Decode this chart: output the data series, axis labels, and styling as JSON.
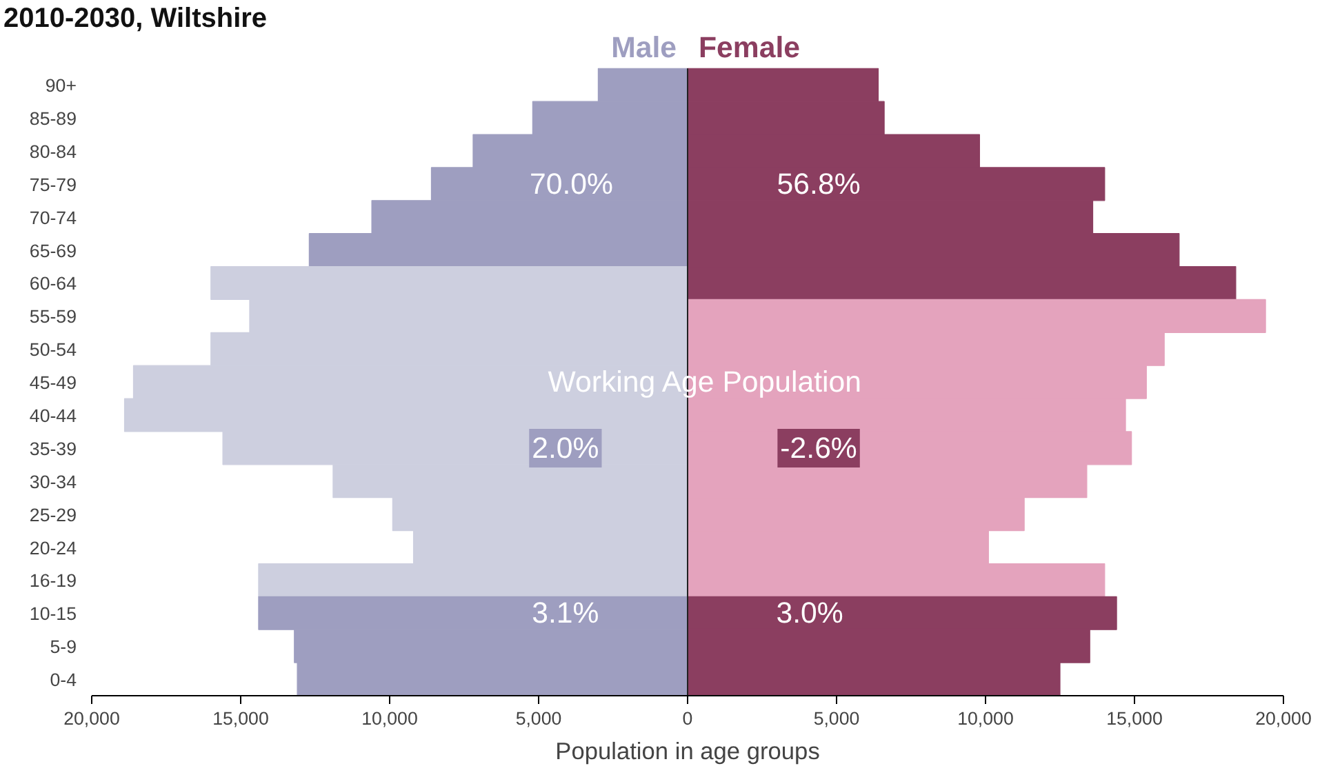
{
  "chart_data": {
    "type": "bar",
    "orientation": "horizontal",
    "title": "2010-2030, Wiltshire",
    "xlabel": "Population in age groups",
    "categories": [
      "90+",
      "85-89",
      "80-84",
      "75-79",
      "70-74",
      "65-69",
      "60-64",
      "55-59",
      "50-54",
      "45-49",
      "40-44",
      "35-39",
      "30-34",
      "25-29",
      "20-24",
      "16-19",
      "10-15",
      "5-9",
      "0-4"
    ],
    "series": [
      {
        "name": "Male",
        "color": "#9e9ec0",
        "values": [
          -3000,
          -5200,
          -7200,
          -8600,
          -10600,
          -12700,
          -16000,
          -14700,
          -16000,
          -18600,
          -18900,
          -15600,
          -11900,
          -9900,
          -9200,
          -14400,
          -14400,
          -13200,
          -13100
        ],
        "colors": [
          "#9e9ec0",
          "#9e9ec0",
          "#9e9ec0",
          "#9e9ec0",
          "#9e9ec0",
          "#9e9ec0",
          "#cdcfdf",
          "#cdcfdf",
          "#cdcfdf",
          "#cdcfdf",
          "#cdcfdf",
          "#cdcfdf",
          "#cdcfdf",
          "#cdcfdf",
          "#cdcfdf",
          "#cdcfdf",
          "#9e9ec0",
          "#9e9ec0",
          "#9e9ec0"
        ]
      },
      {
        "name": "Female",
        "color": "#8b3e60",
        "values": [
          6400,
          6600,
          9800,
          14000,
          13600,
          16500,
          18400,
          19400,
          16000,
          15400,
          14700,
          14900,
          13400,
          11300,
          10100,
          14000,
          14400,
          13500,
          12500
        ],
        "colors": [
          "#8b3e60",
          "#8b3e60",
          "#8b3e60",
          "#8b3e60",
          "#8b3e60",
          "#8b3e60",
          "#8b3e60",
          "#e4a3bd",
          "#e4a3bd",
          "#e4a3bd",
          "#e4a3bd",
          "#e4a3bd",
          "#e4a3bd",
          "#e4a3bd",
          "#e4a3bd",
          "#e4a3bd",
          "#8b3e60",
          "#8b3e60",
          "#8b3e60"
        ]
      }
    ],
    "xlim": [
      -20000,
      20000
    ],
    "xticks": [
      {
        "value": -20000,
        "label": "20,000"
      },
      {
        "value": -15000,
        "label": "15,000"
      },
      {
        "value": -10000,
        "label": "10,000"
      },
      {
        "value": -5000,
        "label": "5,000"
      },
      0,
      {
        "value": 5000,
        "label": "5,000"
      },
      {
        "value": 10000,
        "label": "10,000"
      },
      {
        "value": 15000,
        "label": "15,000"
      },
      {
        "value": 20000,
        "label": "20,000"
      }
    ],
    "annotations": [
      {
        "text": "70.0%",
        "x": -3900,
        "y": "75-79"
      },
      {
        "text": "56.8%",
        "x": 4400,
        "y": "75-79"
      },
      {
        "text": "Working Age Population",
        "x": 600,
        "y": "45-49"
      },
      {
        "text": "2.0%",
        "x": -4100,
        "y": "35-39"
      },
      {
        "text": "-2.6%",
        "x": 4400,
        "y": "35-39"
      },
      {
        "text": "3.1%",
        "x": -4100,
        "y": "10-15"
      },
      {
        "text": "3.0%",
        "x": 4100,
        "y": "10-15"
      }
    ],
    "stacked": true
  }
}
